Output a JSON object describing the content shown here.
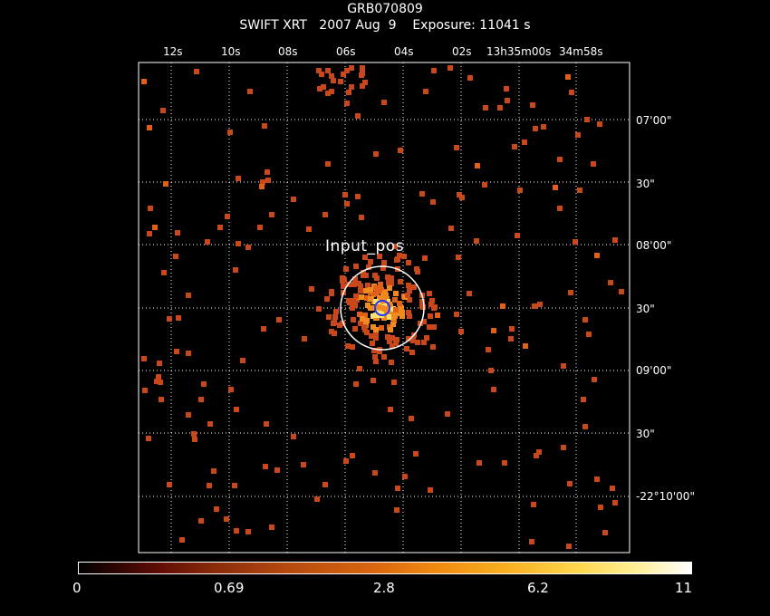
{
  "title": {
    "object": "GRB070809",
    "instrument_line": "SWIFT XRT   2007 Aug  9    Exposure: 11041 s"
  },
  "top_axis_labels": [
    "12s",
    "10s",
    "08s",
    "06s",
    "04s",
    "02s",
    "13h35m00s",
    "34m58s"
  ],
  "right_axis_labels": [
    "07'00\"",
    "30\"",
    "08'00\"",
    "30\"",
    "09'00\"",
    "30\"",
    "-22°10'00\""
  ],
  "source_marker": {
    "label": "Input_pos"
  },
  "colorbar": {
    "tick_labels": [
      "0",
      "0.69",
      "2.8",
      "6.2",
      "11"
    ]
  },
  "colors": {
    "low": "#c8471b",
    "mid": "#f08a1e",
    "high": "#ffe070",
    "white_circle": "#ffffff",
    "blue_circle": "#2035ff",
    "grid": "#ffffff"
  }
}
